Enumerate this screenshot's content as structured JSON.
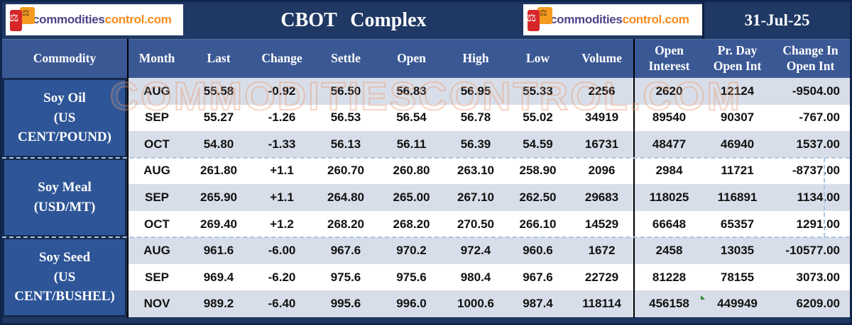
{
  "header": {
    "logo": {
      "icon": "scales-icon",
      "text_part1": "commodities",
      "text_part2": "control.com"
    },
    "title": "CBOT Complex",
    "date": "31-Jul-25"
  },
  "columns": [
    {
      "label": "Commodity"
    },
    {
      "label": "Month"
    },
    {
      "label": "Last"
    },
    {
      "label": "Change"
    },
    {
      "label": "Settle"
    },
    {
      "label": "Open"
    },
    {
      "label": "High"
    },
    {
      "label": "Low"
    },
    {
      "label": "Volume"
    },
    {
      "label": "Open",
      "label2": "Interest"
    },
    {
      "label": "Pr. Day",
      "label2": "Open Int"
    },
    {
      "label": "Change In",
      "label2": "Open Int"
    }
  ],
  "groups": [
    {
      "commodity_lines": [
        "Soy Oil",
        "(US",
        "CENT/POUND)"
      ],
      "rows": [
        {
          "month": "AUG",
          "last": "55.58",
          "change": "-0.92",
          "settle": "56.50",
          "open": "56.83",
          "high": "56.95",
          "low": "55.33",
          "volume": "2256",
          "open_interest": "2620",
          "pr_day_open_int": "12124",
          "change_in_open_int": "-9504.00"
        },
        {
          "month": "SEP",
          "last": "55.27",
          "change": "-1.26",
          "settle": "56.53",
          "open": "56.54",
          "high": "56.78",
          "low": "55.02",
          "volume": "34919",
          "open_interest": "89540",
          "pr_day_open_int": "90307",
          "change_in_open_int": "-767.00"
        },
        {
          "month": "OCT",
          "last": "54.80",
          "change": "-1.33",
          "settle": "56.13",
          "open": "56.11",
          "high": "56.39",
          "low": "54.59",
          "volume": "16731",
          "open_interest": "48477",
          "pr_day_open_int": "46940",
          "change_in_open_int": "1537.00"
        }
      ]
    },
    {
      "commodity_lines": [
        "Soy Meal",
        "(USD/MT)"
      ],
      "rows": [
        {
          "month": "AUG",
          "last": "261.80",
          "change": "+1.1",
          "settle": "260.70",
          "open": "260.80",
          "high": "263.10",
          "low": "258.90",
          "volume": "2096",
          "open_interest": "2984",
          "pr_day_open_int": "11721",
          "change_in_open_int": "-8737.00"
        },
        {
          "month": "SEP",
          "last": "265.90",
          "change": "+1.1",
          "settle": "264.80",
          "open": "265.00",
          "high": "267.10",
          "low": "262.50",
          "volume": "29683",
          "open_interest": "118025",
          "pr_day_open_int": "116891",
          "change_in_open_int": "1134.00"
        },
        {
          "month": "OCT",
          "last": "269.40",
          "change": "+1.2",
          "settle": "268.20",
          "open": "268.20",
          "high": "270.50",
          "low": "266.10",
          "volume": "14529",
          "open_interest": "66648",
          "pr_day_open_int": "65357",
          "change_in_open_int": "1291.00"
        }
      ]
    },
    {
      "commodity_lines": [
        "Soy Seed",
        "(US",
        "CENT/BUSHEL)"
      ],
      "rows": [
        {
          "month": "AUG",
          "last": "961.6",
          "change": "-6.00",
          "settle": "967.6",
          "open": "970.2",
          "high": "972.4",
          "low": "960.6",
          "volume": "1672",
          "open_interest": "2458",
          "pr_day_open_int": "13035",
          "change_in_open_int": "-10577.00"
        },
        {
          "month": "SEP",
          "last": "969.4",
          "change": "-6.20",
          "settle": "975.6",
          "open": "975.6",
          "high": "980.4",
          "low": "967.6",
          "volume": "22729",
          "open_interest": "81228",
          "pr_day_open_int": "78155",
          "change_in_open_int": "3073.00"
        },
        {
          "month": "NOV",
          "last": "989.2",
          "change": "-6.40",
          "settle": "995.6",
          "open": "996.0",
          "high": "1000.6",
          "low": "987.4",
          "volume": "118114",
          "open_interest": "456158",
          "pr_day_open_int": "449949",
          "change_in_open_int": "6209.00"
        }
      ]
    }
  ],
  "watermark": "COMMODITIESCONTROL.COM",
  "colors": {
    "navy": "#1f3864",
    "header_blue": "#3a5894",
    "commodity_blue": "#2e5597",
    "row_stripe": "#d8dee9",
    "logo_purple": "#4b4488",
    "logo_orange": "#f68b1f",
    "dashed_line": "#a9c6e2",
    "flag_green": "#1f8a1f"
  }
}
